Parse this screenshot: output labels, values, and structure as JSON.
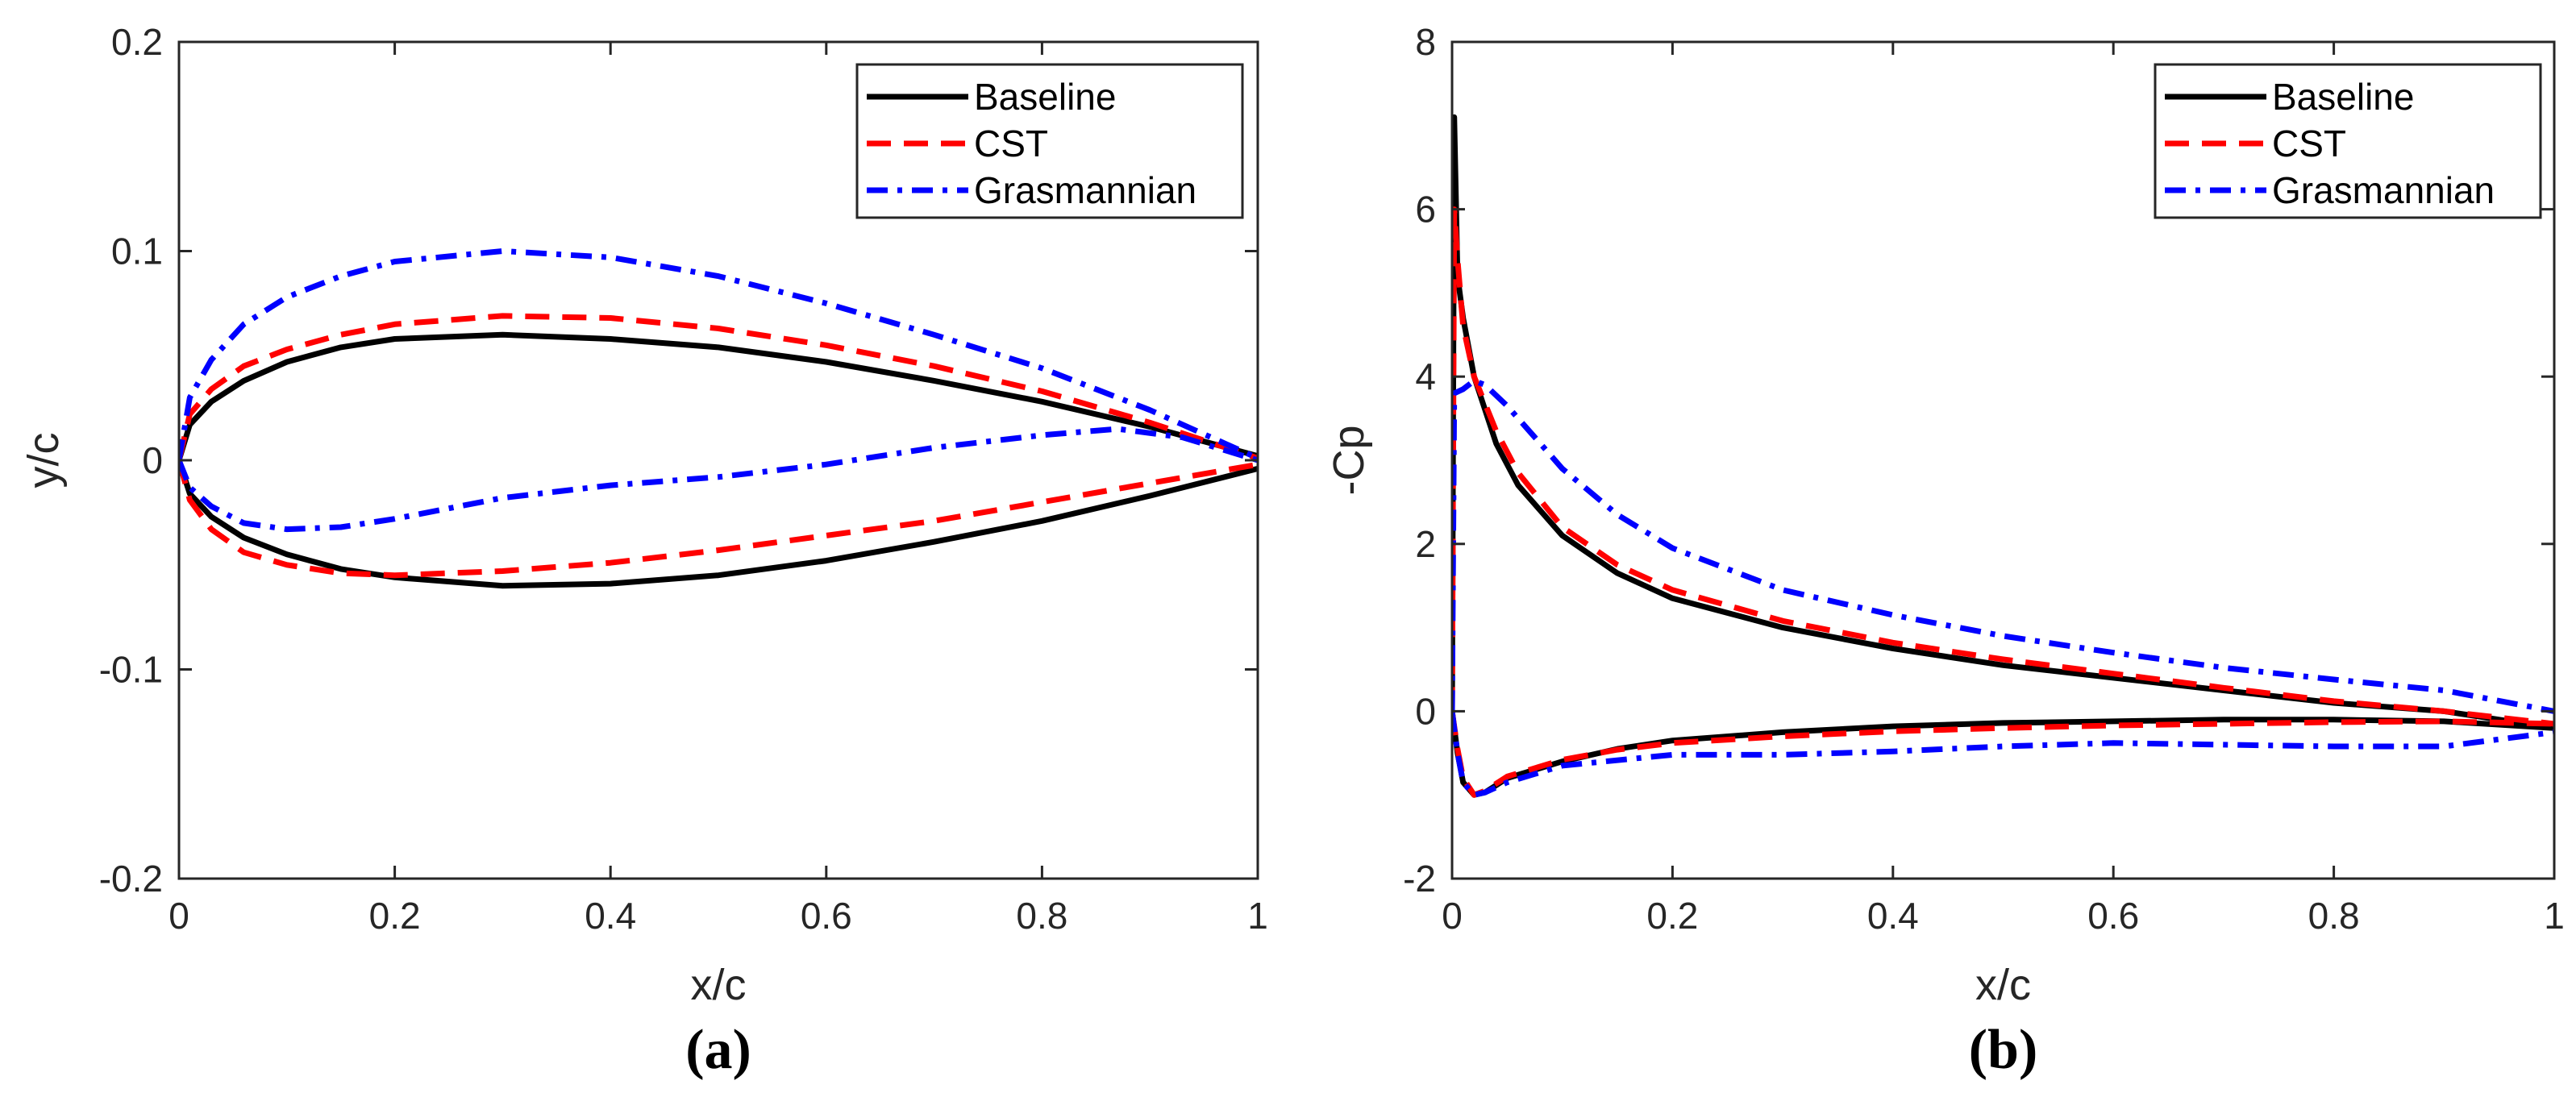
{
  "chart_data": [
    {
      "type": "line",
      "panel_label": "(a)",
      "xlabel": "x/c",
      "ylabel": "y/c",
      "xlim": [
        0,
        1
      ],
      "ylim": [
        -0.2,
        0.2
      ],
      "xticks": [
        0,
        0.2,
        0.4,
        0.6,
        0.8,
        1
      ],
      "xtick_labels": [
        "0",
        "0.2",
        "0.4",
        "0.6",
        "0.8",
        "1"
      ],
      "yticks": [
        -0.2,
        -0.1,
        0,
        0.1,
        0.2
      ],
      "ytick_labels": [
        "-0.2",
        "-0.1",
        "0",
        "0.1",
        "0.2"
      ],
      "legend_position": "top-right",
      "series": [
        {
          "name": "Baseline",
          "color": "#000000",
          "style": "solid",
          "segments": [
            [
              [
                0,
                0
              ],
              [
                0.01,
                0.017
              ],
              [
                0.03,
                0.028
              ],
              [
                0.06,
                0.038
              ],
              [
                0.1,
                0.047
              ],
              [
                0.15,
                0.054
              ],
              [
                0.2,
                0.058
              ],
              [
                0.3,
                0.06
              ],
              [
                0.4,
                0.058
              ],
              [
                0.5,
                0.054
              ],
              [
                0.6,
                0.047
              ],
              [
                0.7,
                0.038
              ],
              [
                0.8,
                0.028
              ],
              [
                0.9,
                0.016
              ],
              [
                1.0,
                0.002
              ]
            ],
            [
              [
                0,
                0
              ],
              [
                0.01,
                -0.016
              ],
              [
                0.03,
                -0.027
              ],
              [
                0.06,
                -0.037
              ],
              [
                0.1,
                -0.045
              ],
              [
                0.15,
                -0.052
              ],
              [
                0.2,
                -0.056
              ],
              [
                0.3,
                -0.06
              ],
              [
                0.4,
                -0.059
              ],
              [
                0.5,
                -0.055
              ],
              [
                0.6,
                -0.048
              ],
              [
                0.7,
                -0.039
              ],
              [
                0.8,
                -0.029
              ],
              [
                0.9,
                -0.017
              ],
              [
                1.0,
                -0.004
              ]
            ]
          ]
        },
        {
          "name": "CST",
          "color": "#ff0000",
          "style": "dashed",
          "segments": [
            [
              [
                0,
                0
              ],
              [
                0.01,
                0.022
              ],
              [
                0.03,
                0.034
              ],
              [
                0.06,
                0.045
              ],
              [
                0.1,
                0.053
              ],
              [
                0.15,
                0.06
              ],
              [
                0.2,
                0.065
              ],
              [
                0.3,
                0.069
              ],
              [
                0.4,
                0.068
              ],
              [
                0.5,
                0.063
              ],
              [
                0.6,
                0.055
              ],
              [
                0.7,
                0.045
              ],
              [
                0.8,
                0.033
              ],
              [
                0.9,
                0.018
              ],
              [
                1.0,
                0.001
              ]
            ],
            [
              [
                0,
                0
              ],
              [
                0.01,
                -0.019
              ],
              [
                0.03,
                -0.033
              ],
              [
                0.06,
                -0.044
              ],
              [
                0.1,
                -0.05
              ],
              [
                0.15,
                -0.054
              ],
              [
                0.2,
                -0.055
              ],
              [
                0.3,
                -0.053
              ],
              [
                0.4,
                -0.049
              ],
              [
                0.5,
                -0.043
              ],
              [
                0.6,
                -0.036
              ],
              [
                0.7,
                -0.029
              ],
              [
                0.8,
                -0.02
              ],
              [
                0.9,
                -0.011
              ],
              [
                1.0,
                -0.002
              ]
            ]
          ]
        },
        {
          "name": "Grasmannian",
          "color": "#0000ff",
          "style": "dashdot",
          "segments": [
            [
              [
                0,
                0
              ],
              [
                0.01,
                0.03
              ],
              [
                0.03,
                0.048
              ],
              [
                0.06,
                0.065
              ],
              [
                0.1,
                0.078
              ],
              [
                0.15,
                0.088
              ],
              [
                0.2,
                0.095
              ],
              [
                0.3,
                0.1
              ],
              [
                0.4,
                0.097
              ],
              [
                0.5,
                0.088
              ],
              [
                0.6,
                0.075
              ],
              [
                0.7,
                0.06
              ],
              [
                0.8,
                0.044
              ],
              [
                0.9,
                0.024
              ],
              [
                1.0,
                0.001
              ]
            ],
            [
              [
                0,
                0
              ],
              [
                0.01,
                -0.013
              ],
              [
                0.03,
                -0.022
              ],
              [
                0.06,
                -0.03
              ],
              [
                0.1,
                -0.033
              ],
              [
                0.15,
                -0.032
              ],
              [
                0.2,
                -0.028
              ],
              [
                0.3,
                -0.018
              ],
              [
                0.4,
                -0.012
              ],
              [
                0.5,
                -0.008
              ],
              [
                0.6,
                -0.002
              ],
              [
                0.7,
                0.006
              ],
              [
                0.8,
                0.012
              ],
              [
                0.87,
                0.015
              ],
              [
                0.93,
                0.011
              ],
              [
                1.0,
                0.0
              ]
            ]
          ]
        }
      ]
    },
    {
      "type": "line",
      "panel_label": "(b)",
      "xlabel": "x/c",
      "ylabel": "-Cp",
      "xlim": [
        0,
        1
      ],
      "ylim": [
        -2,
        8
      ],
      "xticks": [
        0,
        0.2,
        0.4,
        0.6,
        0.8,
        1
      ],
      "xtick_labels": [
        "0",
        "0.2",
        "0.4",
        "0.6",
        "0.8",
        "1"
      ],
      "yticks": [
        -2,
        0,
        2,
        4,
        6,
        8
      ],
      "ytick_labels": [
        "-2",
        "0",
        "2",
        "4",
        "6",
        "8"
      ],
      "legend_position": "top-right",
      "series": [
        {
          "name": "Baseline",
          "color": "#000000",
          "style": "solid",
          "segments": [
            [
              [
                0,
                0
              ],
              [
                0.002,
                7.1
              ],
              [
                0.005,
                5.2
              ],
              [
                0.01,
                4.7
              ],
              [
                0.02,
                4.0
              ],
              [
                0.04,
                3.2
              ],
              [
                0.06,
                2.7
              ],
              [
                0.1,
                2.1
              ],
              [
                0.15,
                1.65
              ],
              [
                0.2,
                1.35
              ],
              [
                0.3,
                1.0
              ],
              [
                0.4,
                0.75
              ],
              [
                0.5,
                0.55
              ],
              [
                0.6,
                0.4
              ],
              [
                0.7,
                0.25
              ],
              [
                0.8,
                0.1
              ],
              [
                0.9,
                0.0
              ],
              [
                1.0,
                -0.2
              ]
            ],
            [
              [
                0,
                0
              ],
              [
                0.005,
                -0.5
              ],
              [
                0.01,
                -0.85
              ],
              [
                0.02,
                -1.0
              ],
              [
                0.03,
                -0.97
              ],
              [
                0.05,
                -0.8
              ],
              [
                0.1,
                -0.6
              ],
              [
                0.15,
                -0.45
              ],
              [
                0.2,
                -0.35
              ],
              [
                0.3,
                -0.25
              ],
              [
                0.4,
                -0.18
              ],
              [
                0.5,
                -0.14
              ],
              [
                0.6,
                -0.12
              ],
              [
                0.7,
                -0.1
              ],
              [
                0.8,
                -0.1
              ],
              [
                0.9,
                -0.12
              ],
              [
                1.0,
                -0.2
              ]
            ]
          ]
        },
        {
          "name": "CST",
          "color": "#ff0000",
          "style": "dashed",
          "segments": [
            [
              [
                0,
                0
              ],
              [
                0.002,
                6.0
              ],
              [
                0.005,
                5.4
              ],
              [
                0.01,
                4.6
              ],
              [
                0.02,
                4.0
              ],
              [
                0.04,
                3.35
              ],
              [
                0.06,
                2.85
              ],
              [
                0.1,
                2.2
              ],
              [
                0.15,
                1.75
              ],
              [
                0.2,
                1.45
              ],
              [
                0.3,
                1.08
              ],
              [
                0.4,
                0.82
              ],
              [
                0.5,
                0.62
              ],
              [
                0.6,
                0.45
              ],
              [
                0.7,
                0.28
              ],
              [
                0.8,
                0.12
              ],
              [
                0.9,
                0.0
              ],
              [
                1.0,
                -0.15
              ]
            ],
            [
              [
                0,
                0
              ],
              [
                0.005,
                -0.45
              ],
              [
                0.01,
                -0.8
              ],
              [
                0.02,
                -1.0
              ],
              [
                0.03,
                -0.95
              ],
              [
                0.05,
                -0.78
              ],
              [
                0.1,
                -0.58
              ],
              [
                0.15,
                -0.46
              ],
              [
                0.2,
                -0.38
              ],
              [
                0.3,
                -0.3
              ],
              [
                0.4,
                -0.24
              ],
              [
                0.5,
                -0.2
              ],
              [
                0.6,
                -0.17
              ],
              [
                0.7,
                -0.15
              ],
              [
                0.8,
                -0.13
              ],
              [
                0.9,
                -0.12
              ],
              [
                1.0,
                -0.15
              ]
            ]
          ]
        },
        {
          "name": "Grasmannian",
          "color": "#0000ff",
          "style": "dashdot",
          "segments": [
            [
              [
                0,
                0
              ],
              [
                0.002,
                3.8
              ],
              [
                0.01,
                3.85
              ],
              [
                0.02,
                3.95
              ],
              [
                0.03,
                3.9
              ],
              [
                0.05,
                3.65
              ],
              [
                0.08,
                3.2
              ],
              [
                0.1,
                2.9
              ],
              [
                0.15,
                2.35
              ],
              [
                0.2,
                1.95
              ],
              [
                0.3,
                1.45
              ],
              [
                0.4,
                1.15
              ],
              [
                0.5,
                0.9
              ],
              [
                0.6,
                0.7
              ],
              [
                0.7,
                0.52
              ],
              [
                0.8,
                0.38
              ],
              [
                0.9,
                0.25
              ],
              [
                1.0,
                0.0
              ]
            ],
            [
              [
                0,
                0
              ],
              [
                0.005,
                -0.5
              ],
              [
                0.01,
                -0.85
              ],
              [
                0.02,
                -1.0
              ],
              [
                0.03,
                -0.97
              ],
              [
                0.05,
                -0.85
              ],
              [
                0.1,
                -0.65
              ],
              [
                0.2,
                -0.52
              ],
              [
                0.3,
                -0.52
              ],
              [
                0.4,
                -0.48
              ],
              [
                0.5,
                -0.42
              ],
              [
                0.6,
                -0.38
              ],
              [
                0.7,
                -0.4
              ],
              [
                0.8,
                -0.42
              ],
              [
                0.9,
                -0.42
              ],
              [
                1.0,
                -0.25
              ]
            ]
          ]
        }
      ]
    }
  ]
}
